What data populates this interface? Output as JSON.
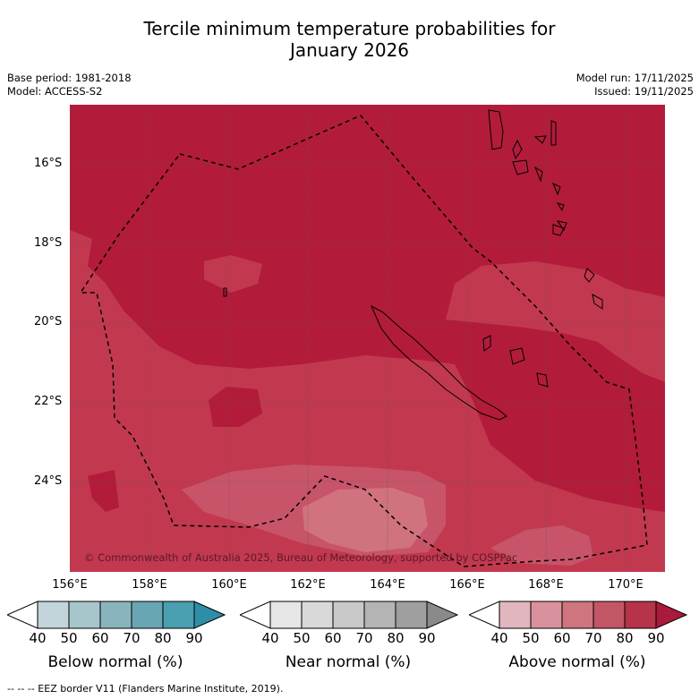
{
  "title_line1": "Tercile minimum temperature probabilities for",
  "title_line2": "January 2026",
  "base_period": "Base period: 1981-2018",
  "model": "Model: ACCESS-S2",
  "model_run": "Model run: 17/11/2025",
  "issued": "Issued: 19/11/2025",
  "copyright": "© Commonwealth of Australia 2025, Bureau of Meteorology, supported by COSPPac",
  "lat_labels": [
    "16°S",
    "18°S",
    "20°S",
    "22°S",
    "24°S"
  ],
  "lon_labels": [
    "156°E",
    "158°E",
    "160°E",
    "162°E",
    "164°E",
    "166°E",
    "168°E",
    "170°E"
  ],
  "colorbars": [
    {
      "title": "Below normal (%)",
      "ticks": [
        "40",
        "50",
        "60",
        "70",
        "80",
        "90"
      ],
      "colors": [
        "#c3d5da",
        "#a7c6cb",
        "#89b4be",
        "#6aa5b3",
        "#4a9fb1",
        "#2d8ea8"
      ]
    },
    {
      "title": "Near normal (%)",
      "ticks": [
        "40",
        "50",
        "60",
        "70",
        "80",
        "90"
      ],
      "colors": [
        "#e6e6e6",
        "#d9d9d9",
        "#c8c8c8",
        "#b4b4b4",
        "#9f9f9f",
        "#8a8a8a"
      ]
    },
    {
      "title": "Above normal (%)",
      "ticks": [
        "40",
        "50",
        "60",
        "70",
        "80",
        "90"
      ],
      "colors": [
        "#e2b6bf",
        "#d9929d",
        "#cf7580",
        "#c25665",
        "#b63349",
        "#aa1a3a"
      ]
    }
  ],
  "legend_note": "-- -- -- EEZ border V11 (Flanders Marine Institute, 2019).",
  "map_colors": {
    "base": "#b21c3a",
    "level70": "#c2394f",
    "level60": "#c8546a",
    "level50": "#d0737e"
  }
}
